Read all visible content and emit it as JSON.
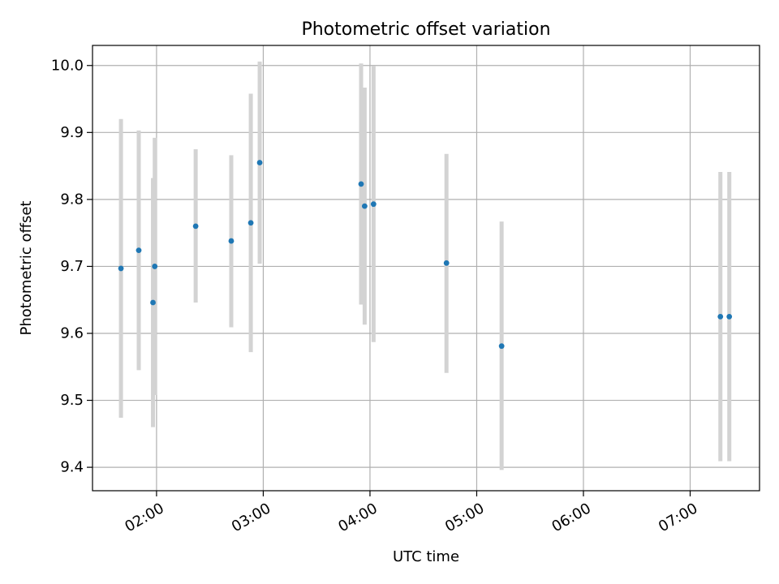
{
  "chart_data": {
    "type": "scatter",
    "title": "Photometric offset variation",
    "xlabel": "UTC time",
    "ylabel": "Photometric offset",
    "x_unit": "UTC time (HH:MM)",
    "xlim": [
      "01:24",
      "07:39"
    ],
    "ylim": [
      9.365,
      10.03
    ],
    "grid": true,
    "x_ticks": [
      "02:00",
      "03:00",
      "04:00",
      "05:00",
      "06:00",
      "07:00"
    ],
    "y_ticks": [
      9.4,
      9.5,
      9.6,
      9.7,
      9.8,
      9.9,
      10.0
    ],
    "marker_color": "#1f77b4",
    "errorbar_color": "#d3d3d3",
    "points": [
      {
        "x": "01:40",
        "y": 9.697,
        "low": 9.474,
        "high": 9.92
      },
      {
        "x": "01:50",
        "y": 9.724,
        "low": 9.545,
        "high": 9.903
      },
      {
        "x": "01:58",
        "y": 9.646,
        "low": 9.46,
        "high": 9.832
      },
      {
        "x": "01:59",
        "y": 9.7,
        "low": 9.508,
        "high": 9.892
      },
      {
        "x": "02:22",
        "y": 9.76,
        "low": 9.646,
        "high": 9.875
      },
      {
        "x": "02:42",
        "y": 9.738,
        "low": 9.609,
        "high": 9.866
      },
      {
        "x": "02:53",
        "y": 9.765,
        "low": 9.572,
        "high": 9.958
      },
      {
        "x": "02:58",
        "y": 9.855,
        "low": 9.704,
        "high": 10.006
      },
      {
        "x": "03:55",
        "y": 9.823,
        "low": 9.643,
        "high": 10.003
      },
      {
        "x": "03:57",
        "y": 9.79,
        "low": 9.613,
        "high": 9.967
      },
      {
        "x": "04:02",
        "y": 9.793,
        "low": 9.587,
        "high": 9.999
      },
      {
        "x": "04:43",
        "y": 9.705,
        "low": 9.541,
        "high": 9.868
      },
      {
        "x": "05:14",
        "y": 9.581,
        "low": 9.396,
        "high": 9.767
      },
      {
        "x": "07:17",
        "y": 9.625,
        "low": 9.409,
        "high": 9.841
      },
      {
        "x": "07:22",
        "y": 9.625,
        "low": 9.409,
        "high": 9.841
      }
    ]
  }
}
